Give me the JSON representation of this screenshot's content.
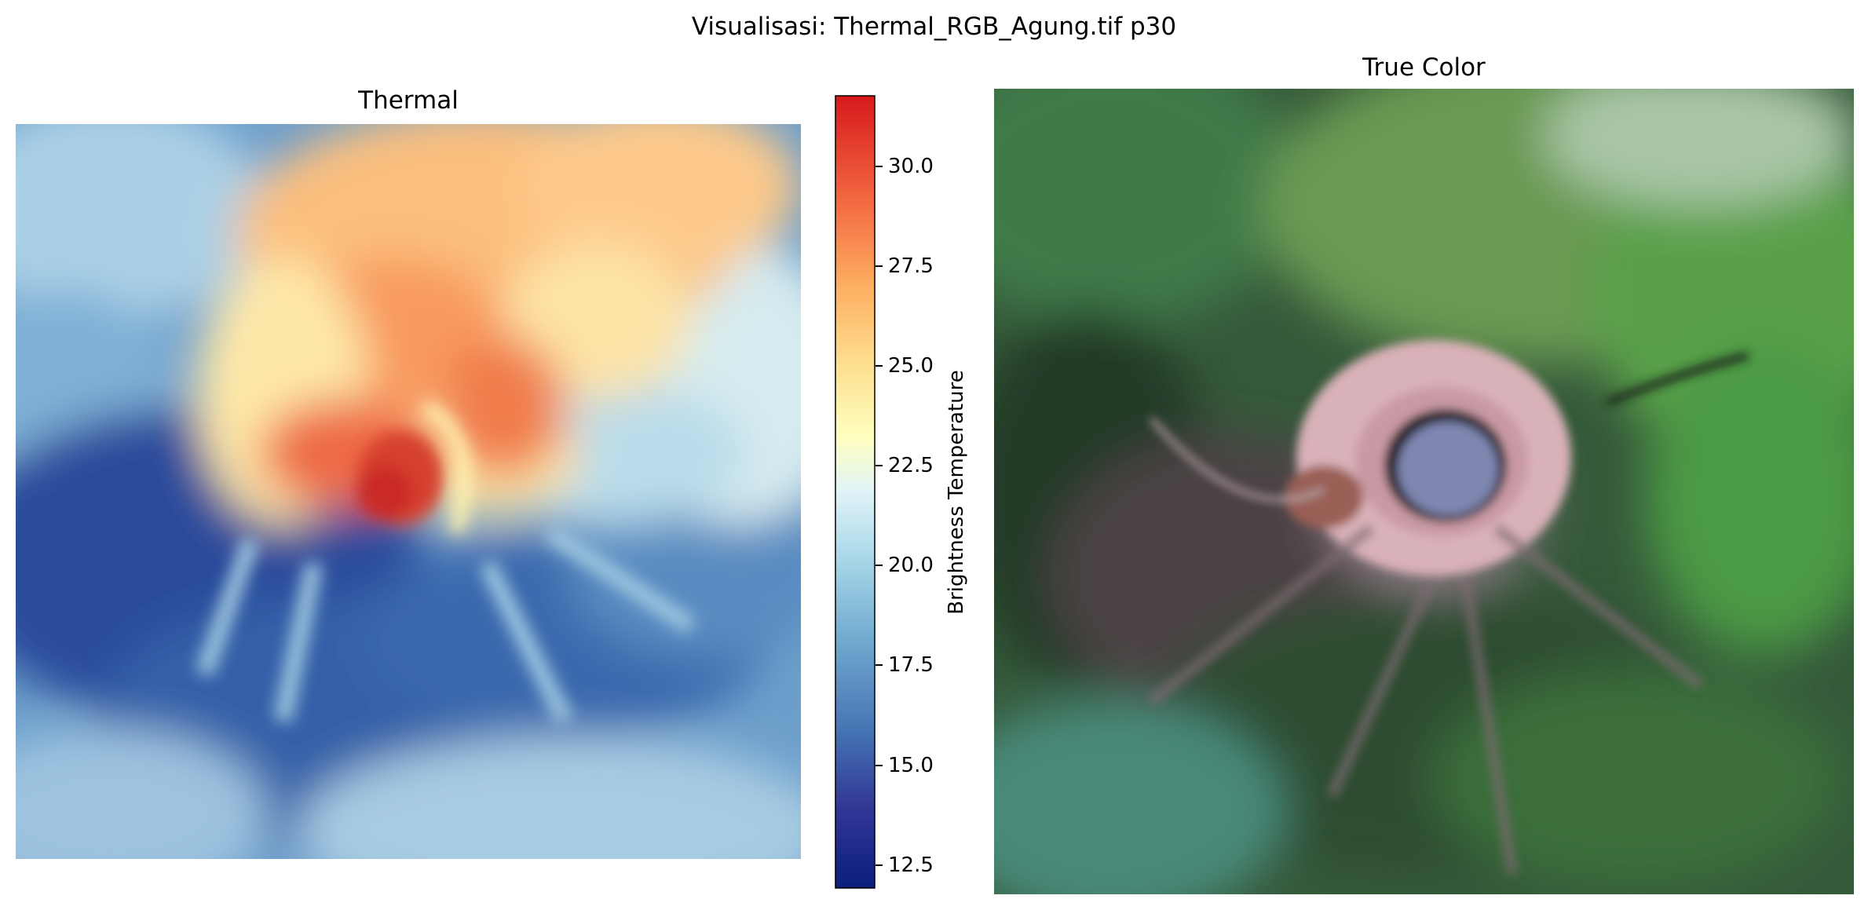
{
  "figure": {
    "suptitle": "Visualisasi: Thermal_RGB_Agung.tif p30"
  },
  "thermal": {
    "title": "Thermal",
    "colormap": "RdYlBu_r",
    "colormap_stops": [
      "#313695",
      "#4575b4",
      "#74add1",
      "#abd9e9",
      "#e0f3f8",
      "#ffffbf",
      "#fee090",
      "#fdae61",
      "#f46d43",
      "#d73027",
      "#a50026"
    ],
    "colorbar": {
      "label": "Brightness Temperature",
      "range": [
        11.9,
        31.8
      ],
      "ticks": [
        "12.5",
        "15.0",
        "17.5",
        "20.0",
        "22.5",
        "25.0",
        "27.5",
        "30.0"
      ],
      "tick_values": [
        12.5,
        15.0,
        17.5,
        20.0,
        22.5,
        25.0,
        27.5,
        30.0
      ]
    }
  },
  "truecolor": {
    "title": "True Color",
    "palette": {
      "forest_dark": "#2c4a2c",
      "forest_light": "#4f8f3f",
      "crater_floor": "#7f86b0",
      "crater_rim": "#d8b3b8",
      "ash_slope": "#8a7a80"
    }
  }
}
